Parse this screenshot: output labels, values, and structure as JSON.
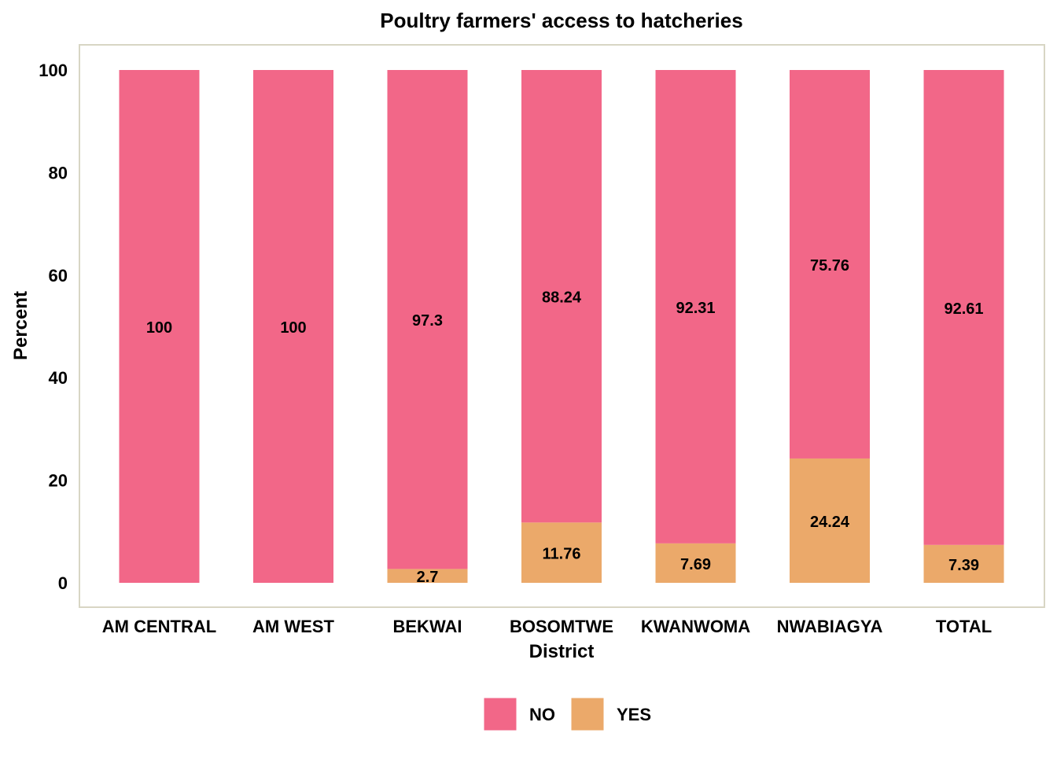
{
  "chart_data": {
    "type": "bar",
    "stacked": true,
    "title": "Poultry farmers' access to hatcheries",
    "xlabel": "District",
    "ylabel": "Percent",
    "ylim": [
      0,
      100
    ],
    "yticks": [
      0,
      20,
      40,
      60,
      80,
      100
    ],
    "grid": false,
    "legend_position": "bottom",
    "categories": [
      "AM CENTRAL",
      "AM WEST",
      "BEKWAI",
      "BOSOMTWE",
      "KWANWOMA",
      "NWABIAGYA",
      "TOTAL"
    ],
    "series": [
      {
        "name": "YES",
        "color": "#EBA96A",
        "values": [
          0,
          0,
          2.7,
          11.76,
          7.69,
          24.24,
          7.39
        ],
        "labels": [
          "",
          "",
          "2.7",
          "11.76",
          "7.69",
          "24.24",
          "7.39"
        ]
      },
      {
        "name": "NO",
        "color": "#F26788",
        "values": [
          100,
          100,
          97.3,
          88.24,
          92.31,
          75.76,
          92.61
        ],
        "labels": [
          "100",
          "100",
          "97.3",
          "88.24",
          "92.31",
          "75.76",
          "92.61"
        ]
      }
    ],
    "legend_order": [
      "NO",
      "YES"
    ],
    "panel_border_color": "#D8D6C4"
  }
}
